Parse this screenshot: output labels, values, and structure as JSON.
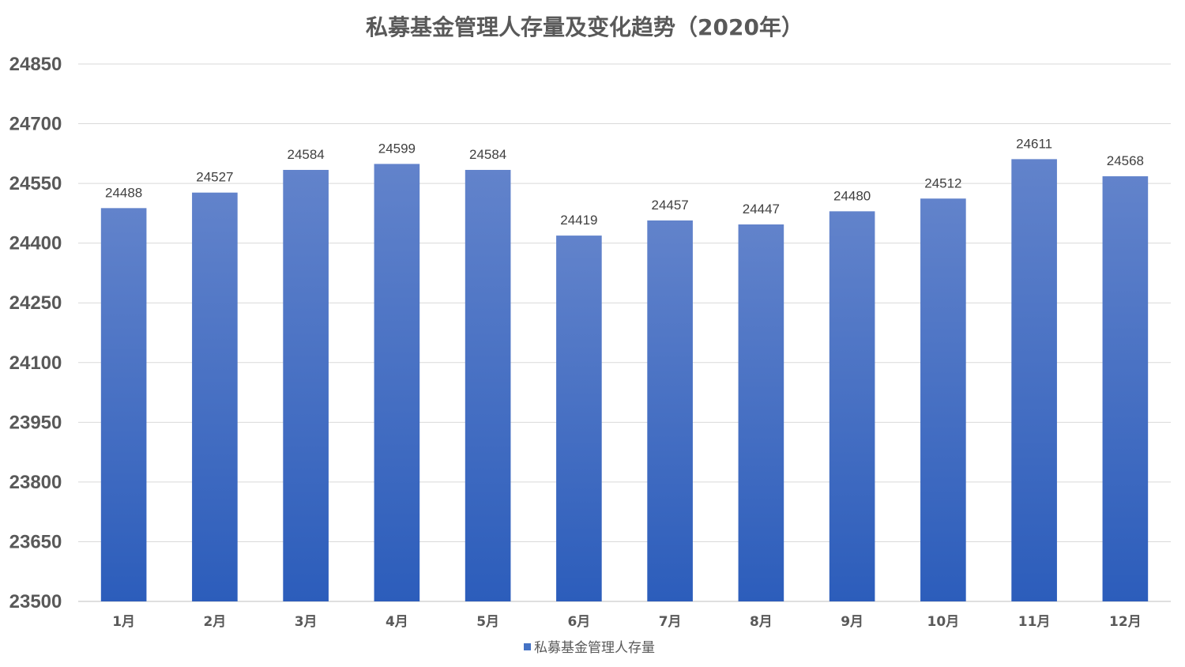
{
  "colors": {
    "bar_top": "#6283CB",
    "bar_bottom": "#2C5DBB",
    "legend_swatch": "#4472C4"
  },
  "chart_data": {
    "type": "bar",
    "title": "私募基金管理人存量及变化趋势（2020年）",
    "xlabel": "",
    "ylabel": "",
    "categories": [
      "1月",
      "2月",
      "3月",
      "4月",
      "5月",
      "6月",
      "7月",
      "8月",
      "9月",
      "10月",
      "11月",
      "12月"
    ],
    "series": [
      {
        "name": "私募基金管理人存量",
        "values": [
          24488,
          24527,
          24584,
          24599,
          24584,
          24419,
          24457,
          24447,
          24480,
          24512,
          24611,
          24568
        ]
      }
    ],
    "ylim": [
      23500,
      24850
    ],
    "yticks": [
      23500,
      23650,
      23800,
      23950,
      24100,
      24250,
      24400,
      24550,
      24700,
      24850
    ],
    "grid": true,
    "data_labels": true,
    "legend_position": "bottom"
  }
}
